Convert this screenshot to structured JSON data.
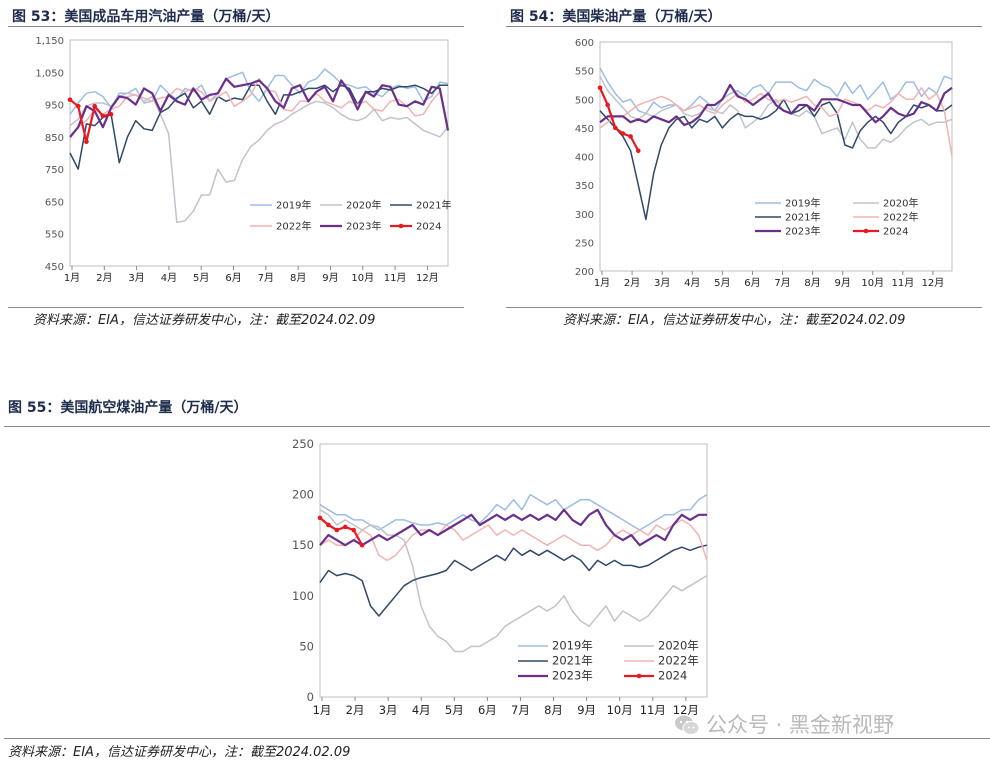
{
  "months": [
    "1月",
    "2月",
    "3月",
    "4月",
    "5月",
    "6月",
    "7月",
    "8月",
    "9月",
    "10月",
    "11月",
    "12月"
  ],
  "source_note": "资料来源：EIA，信达证券研发中心，注：截至2024.02.09",
  "colors": {
    "2019": "#9dbde6",
    "2020": "#bfc4cc",
    "2021": "#2f4869",
    "2022": "#f2b3b0",
    "2023": "#6a2f8c",
    "2024": "#e8191f"
  },
  "watermark": {
    "text": "公众号 · 黑金新视野",
    "icon": "wechat-icon"
  },
  "figures": [
    {
      "title": "图 53：美国成品车用汽油产量（万桶/天）",
      "source": "资料来源：EIA，信达证券研发中心，注：截至2024.02.09",
      "chart_data": {
        "type": "line",
        "xlabel": "",
        "ylabel": "",
        "x_unit": "week",
        "ylim": [
          450,
          1150
        ],
        "yticks": [
          "450",
          "550",
          "650",
          "750",
          "850",
          "950",
          "1,050",
          "1,150"
        ],
        "ytick_values": [
          450,
          550,
          650,
          750,
          850,
          950,
          1050,
          1150
        ],
        "legend": {
          "position": "lower-right",
          "columns": 3
        },
        "series": [
          {
            "name": "2019年",
            "values": [
              920,
              955,
              985,
              990,
              975,
              940,
              985,
              985,
              1000,
              955,
              960,
              1010,
              985,
              965,
              1000,
              990,
              1010,
              960,
              985,
              1030,
              1040,
              1050,
              990,
              960,
              1000,
              1040,
              1040,
              1010,
              985,
              1020,
              1030,
              1060,
              1040,
              1015,
              1010,
              1000,
              1005,
              985,
              975,
              1000,
              1010,
              1000,
              1005,
              960,
              975,
              1020,
              1015
            ]
          },
          {
            "name": "2020年",
            "values": [
              885,
              905,
              945,
              955,
              955,
              945,
              975,
              985,
              980,
              960,
              975,
              920,
              860,
              585,
              590,
              620,
              670,
              670,
              750,
              710,
              715,
              780,
              820,
              840,
              870,
              890,
              900,
              920,
              935,
              950,
              960,
              955,
              940,
              920,
              905,
              900,
              910,
              935,
              900,
              910,
              905,
              910,
              890,
              870,
              860,
              850,
              880
            ]
          },
          {
            "name": "2021年",
            "values": [
              800,
              750,
              890,
              885,
              910,
              920,
              770,
              850,
              900,
              875,
              870,
              925,
              940,
              970,
              985,
              940,
              960,
              920,
              975,
              960,
              970,
              965,
              1010,
              1010,
              960,
              920,
              980,
              980,
              990,
              1000,
              1000,
              1010,
              990,
              1010,
              1000,
              950,
              990,
              990,
              1000,
              995,
              1005,
              1005,
              1010,
              1000,
              985,
              1010,
              1010
            ]
          },
          {
            "name": "2022年",
            "values": [
              845,
              880,
              900,
              935,
              920,
              935,
              945,
              975,
              980,
              970,
              960,
              970,
              975,
              1000,
              990,
              1000,
              990,
              960,
              975,
              990,
              945,
              960,
              980,
              1030,
              995,
              990,
              935,
              930,
              960,
              960,
              985,
              960,
              950,
              940,
              960,
              950,
              960,
              935,
              930,
              960,
              965,
              945,
              915,
              920,
              960,
              990,
              880
            ]
          },
          {
            "name": "2023年",
            "values": [
              850,
              880,
              945,
              930,
              880,
              940,
              975,
              970,
              950,
              1000,
              985,
              930,
              980,
              960,
              950,
              1000,
              965,
              980,
              985,
              1030,
              1005,
              1010,
              1015,
              1025,
              1000,
              960,
              940,
              1000,
              1010,
              960,
              990,
              1005,
              960,
              1025,
              990,
              935,
              990,
              975,
              1010,
              1005,
              950,
              945,
              960,
              950,
              1005,
              1000,
              870
            ]
          },
          {
            "name": "2024",
            "values": [
              965,
              945,
              835,
              945,
              915,
              920
            ],
            "markers": true
          }
        ]
      }
    },
    {
      "title": "图 54：美国柴油产量（万桶/天）",
      "source": "资料来源：EIA，信达证券研发中心，注：截至2024.02.09",
      "chart_data": {
        "type": "line",
        "xlabel": "",
        "ylabel": "",
        "x_unit": "week",
        "ylim": [
          200,
          600
        ],
        "yticks": [
          "200",
          "250",
          "300",
          "350",
          "400",
          "450",
          "500",
          "550",
          "600"
        ],
        "ytick_values": [
          200,
          250,
          300,
          350,
          400,
          450,
          500,
          550,
          600
        ],
        "legend": {
          "position": "lower-right",
          "columns": 2
        },
        "series": [
          {
            "name": "2019年",
            "values": [
              555,
              530,
              510,
              495,
              500,
              480,
              475,
              495,
              485,
              490,
              490,
              480,
              490,
              505,
              495,
              480,
              500,
              510,
              515,
              505,
              520,
              525,
              510,
              530,
              530,
              530,
              520,
              515,
              535,
              525,
              520,
              505,
              530,
              510,
              525,
              500,
              515,
              530,
              500,
              510,
              530,
              530,
              505,
              520,
              510,
              540,
              535
            ]
          },
          {
            "name": "2020年",
            "values": [
              540,
              515,
              500,
              485,
              470,
              465,
              475,
              470,
              480,
              485,
              490,
              475,
              470,
              475,
              485,
              480,
              475,
              490,
              480,
              450,
              460,
              470,
              490,
              500,
              480,
              475,
              470,
              480,
              470,
              440,
              445,
              450,
              430,
              460,
              430,
              415,
              415,
              430,
              425,
              435,
              450,
              460,
              465,
              455,
              460,
              460,
              465
            ]
          },
          {
            "name": "2021年",
            "values": [
              480,
              465,
              450,
              435,
              410,
              350,
              290,
              370,
              420,
              450,
              465,
              470,
              450,
              465,
              460,
              470,
              450,
              465,
              475,
              470,
              470,
              465,
              470,
              480,
              500,
              475,
              480,
              490,
              470,
              490,
              495,
              475,
              420,
              415,
              445,
              460,
              470,
              460,
              440,
              460,
              470,
              490,
              485,
              490,
              480,
              480,
              490
            ]
          },
          {
            "name": "2022年",
            "values": [
              450,
              460,
              470,
              470,
              480,
              490,
              495,
              500,
              505,
              500,
              490,
              480,
              485,
              490,
              480,
              475,
              490,
              500,
              510,
              495,
              500,
              510,
              500,
              495,
              500,
              495,
              500,
              505,
              490,
              485,
              470,
              475,
              500,
              495,
              490,
              480,
              490,
              485,
              495,
              510,
              500,
              500,
              520,
              500,
              510,
              480,
              400
            ]
          },
          {
            "name": "2023年",
            "values": [
              460,
              470,
              470,
              470,
              460,
              465,
              460,
              470,
              465,
              460,
              470,
              455,
              460,
              470,
              490,
              490,
              500,
              525,
              505,
              500,
              490,
              500,
              510,
              490,
              480,
              475,
              490,
              490,
              480,
              500,
              500,
              500,
              495,
              490,
              490,
              475,
              460,
              470,
              485,
              475,
              470,
              475,
              495,
              490,
              480,
              510,
              520
            ]
          },
          {
            "name": "2024",
            "values": [
              520,
              490,
              450,
              440,
              435,
              410
            ],
            "markers": true
          }
        ]
      }
    },
    {
      "title": "图 55：美国航空煤油产量（万桶/天）",
      "source": "资料来源：EIA，信达证券研发中心，注：截至2024.02.09",
      "chart_data": {
        "type": "line",
        "xlabel": "",
        "ylabel": "",
        "x_unit": "week",
        "ylim": [
          0,
          250
        ],
        "yticks": [
          "0",
          "50",
          "100",
          "150",
          "200",
          "250"
        ],
        "ytick_values": [
          0,
          50,
          100,
          150,
          200,
          250
        ],
        "legend": {
          "position": "lower-left",
          "columns": 2
        },
        "series": [
          {
            "name": "2019年",
            "values": [
              190,
              185,
              180,
              180,
              175,
              175,
              170,
              165,
              170,
              175,
              175,
              172,
              170,
              170,
              172,
              170,
              175,
              180,
              175,
              172,
              180,
              190,
              185,
              195,
              185,
              200,
              195,
              190,
              195,
              185,
              190,
              195,
              195,
              190,
              185,
              180,
              175,
              170,
              165,
              170,
              175,
              180,
              180,
              185,
              185,
              195,
              200
            ]
          },
          {
            "name": "2020年",
            "values": [
              185,
              180,
              170,
              175,
              170,
              165,
              170,
              168,
              160,
              160,
              155,
              130,
              90,
              70,
              60,
              55,
              45,
              45,
              50,
              50,
              55,
              60,
              70,
              75,
              80,
              85,
              90,
              85,
              90,
              100,
              85,
              75,
              70,
              80,
              90,
              75,
              85,
              80,
              75,
              80,
              90,
              100,
              110,
              105,
              110,
              115,
              120
            ]
          },
          {
            "name": "2021年",
            "values": [
              113,
              125,
              120,
              122,
              120,
              115,
              90,
              80,
              90,
              100,
              110,
              115,
              118,
              120,
              122,
              125,
              135,
              130,
              125,
              130,
              135,
              140,
              135,
              147,
              140,
              145,
              140,
              145,
              140,
              135,
              140,
              135,
              125,
              135,
              130,
              135,
              130,
              130,
              128,
              130,
              135,
              140,
              145,
              148,
              145,
              148,
              150
            ]
          },
          {
            "name": "2022年",
            "values": [
              150,
              155,
              150,
              150,
              155,
              165,
              160,
              140,
              135,
              140,
              150,
              160,
              165,
              165,
              160,
              170,
              165,
              155,
              160,
              165,
              170,
              160,
              165,
              160,
              165,
              160,
              155,
              150,
              155,
              160,
              155,
              150,
              150,
              145,
              150,
              160,
              165,
              160,
              165,
              160,
              170,
              165,
              170,
              175,
              170,
              160,
              135
            ]
          },
          {
            "name": "2023年",
            "values": [
              150,
              160,
              155,
              150,
              155,
              150,
              155,
              160,
              155,
              160,
              165,
              170,
              160,
              165,
              160,
              165,
              170,
              175,
              180,
              170,
              175,
              180,
              175,
              180,
              175,
              180,
              175,
              180,
              175,
              185,
              175,
              170,
              180,
              185,
              170,
              160,
              155,
              160,
              150,
              155,
              160,
              155,
              170,
              180,
              175,
              180,
              180
            ]
          },
          {
            "name": "2024",
            "values": [
              177,
              170,
              165,
              168,
              165,
              150
            ],
            "markers": true
          }
        ]
      }
    }
  ]
}
